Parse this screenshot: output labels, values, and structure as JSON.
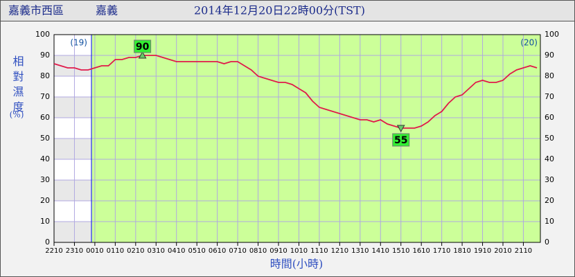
{
  "chart_data": {
    "type": "line",
    "title": "2014年12月20日22時00分(TST)",
    "station": "嘉義市西區",
    "station_name": "嘉義",
    "y_label": "相對濕度",
    "y_unit": "(%)",
    "x_label": "時間(小時)",
    "day_labels": [
      "(19)",
      "(20)"
    ],
    "max_label": "90",
    "min_label": "55",
    "categories": [
      "2210",
      null,
      null,
      "2310",
      null,
      null,
      "0010",
      null,
      null,
      "0110",
      null,
      null,
      "0210",
      null,
      null,
      "0310",
      null,
      null,
      "0410",
      null,
      null,
      "0510",
      null,
      null,
      "0610",
      null,
      null,
      "0710",
      null,
      null,
      "0810",
      null,
      null,
      "0910",
      null,
      null,
      "1010",
      null,
      null,
      "1110",
      null,
      null,
      "1210",
      null,
      null,
      "1310",
      null,
      null,
      "1410",
      null,
      null,
      "1510",
      null,
      null,
      "1610",
      null,
      null,
      "1710",
      null,
      null,
      "1810",
      null,
      null,
      "1910",
      null,
      null,
      "2010",
      null,
      null,
      "2110",
      null,
      null
    ],
    "series": [
      {
        "name": "相對濕度",
        "color": "#e0194a",
        "values": [
          86,
          85,
          84,
          84,
          83,
          83,
          84,
          85,
          85,
          88,
          88,
          89,
          89,
          90,
          90,
          90,
          89,
          88,
          87,
          87,
          87,
          87,
          87,
          87,
          87,
          86,
          87,
          87,
          85,
          83,
          80,
          79,
          78,
          77,
          77,
          76,
          74,
          72,
          68,
          65,
          64,
          63,
          62,
          61,
          60,
          59,
          59,
          58,
          59,
          57,
          56,
          55,
          55,
          55,
          56,
          58,
          61,
          63,
          67,
          70,
          71,
          74,
          77,
          78,
          77,
          77,
          78,
          81,
          83,
          84,
          85,
          84
        ]
      }
    ],
    "ylim": [
      0,
      100
    ],
    "yticks": [
      0,
      10,
      20,
      30,
      40,
      50,
      60,
      70,
      80,
      90,
      100
    ],
    "grid": true
  }
}
